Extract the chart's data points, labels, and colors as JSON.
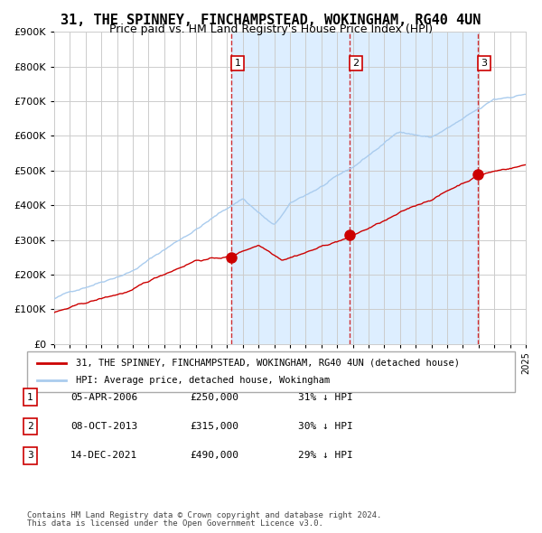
{
  "title": "31, THE SPINNEY, FINCHAMPSTEAD, WOKINGHAM, RG40 4UN",
  "subtitle": "Price paid vs. HM Land Registry's House Price Index (HPI)",
  "title_fontsize": 11,
  "subtitle_fontsize": 9,
  "x_start_year": 1995,
  "x_end_year": 2025,
  "y_min": 0,
  "y_max": 900000,
  "y_ticks": [
    0,
    100000,
    200000,
    300000,
    400000,
    500000,
    600000,
    700000,
    800000,
    900000
  ],
  "y_tick_labels": [
    "£0",
    "£100K",
    "£200K",
    "£300K",
    "£400K",
    "£500K",
    "£600K",
    "£700K",
    "£800K",
    "£900K"
  ],
  "hpi_color": "#aaccee",
  "price_color": "#cc0000",
  "background_color": "#ffffff",
  "plot_bg_color": "#ffffff",
  "shaded_region_color": "#ddeeff",
  "grid_color": "#cccccc",
  "sale1_date": 2006.27,
  "sale1_price": 250000,
  "sale2_date": 2013.77,
  "sale2_price": 315000,
  "sale3_date": 2021.95,
  "sale3_price": 490000,
  "legend_label_red": "31, THE SPINNEY, FINCHAMPSTEAD, WOKINGHAM, RG40 4UN (detached house)",
  "legend_label_blue": "HPI: Average price, detached house, Wokingham",
  "table_rows": [
    {
      "num": "1",
      "date": "05-APR-2006",
      "price": "£250,000",
      "hpi": "31% ↓ HPI"
    },
    {
      "num": "2",
      "date": "08-OCT-2013",
      "price": "£315,000",
      "hpi": "30% ↓ HPI"
    },
    {
      "num": "3",
      "date": "14-DEC-2021",
      "price": "£490,000",
      "hpi": "29% ↓ HPI"
    }
  ],
  "footer1": "Contains HM Land Registry data © Crown copyright and database right 2024.",
  "footer2": "This data is licensed under the Open Government Licence v3.0."
}
